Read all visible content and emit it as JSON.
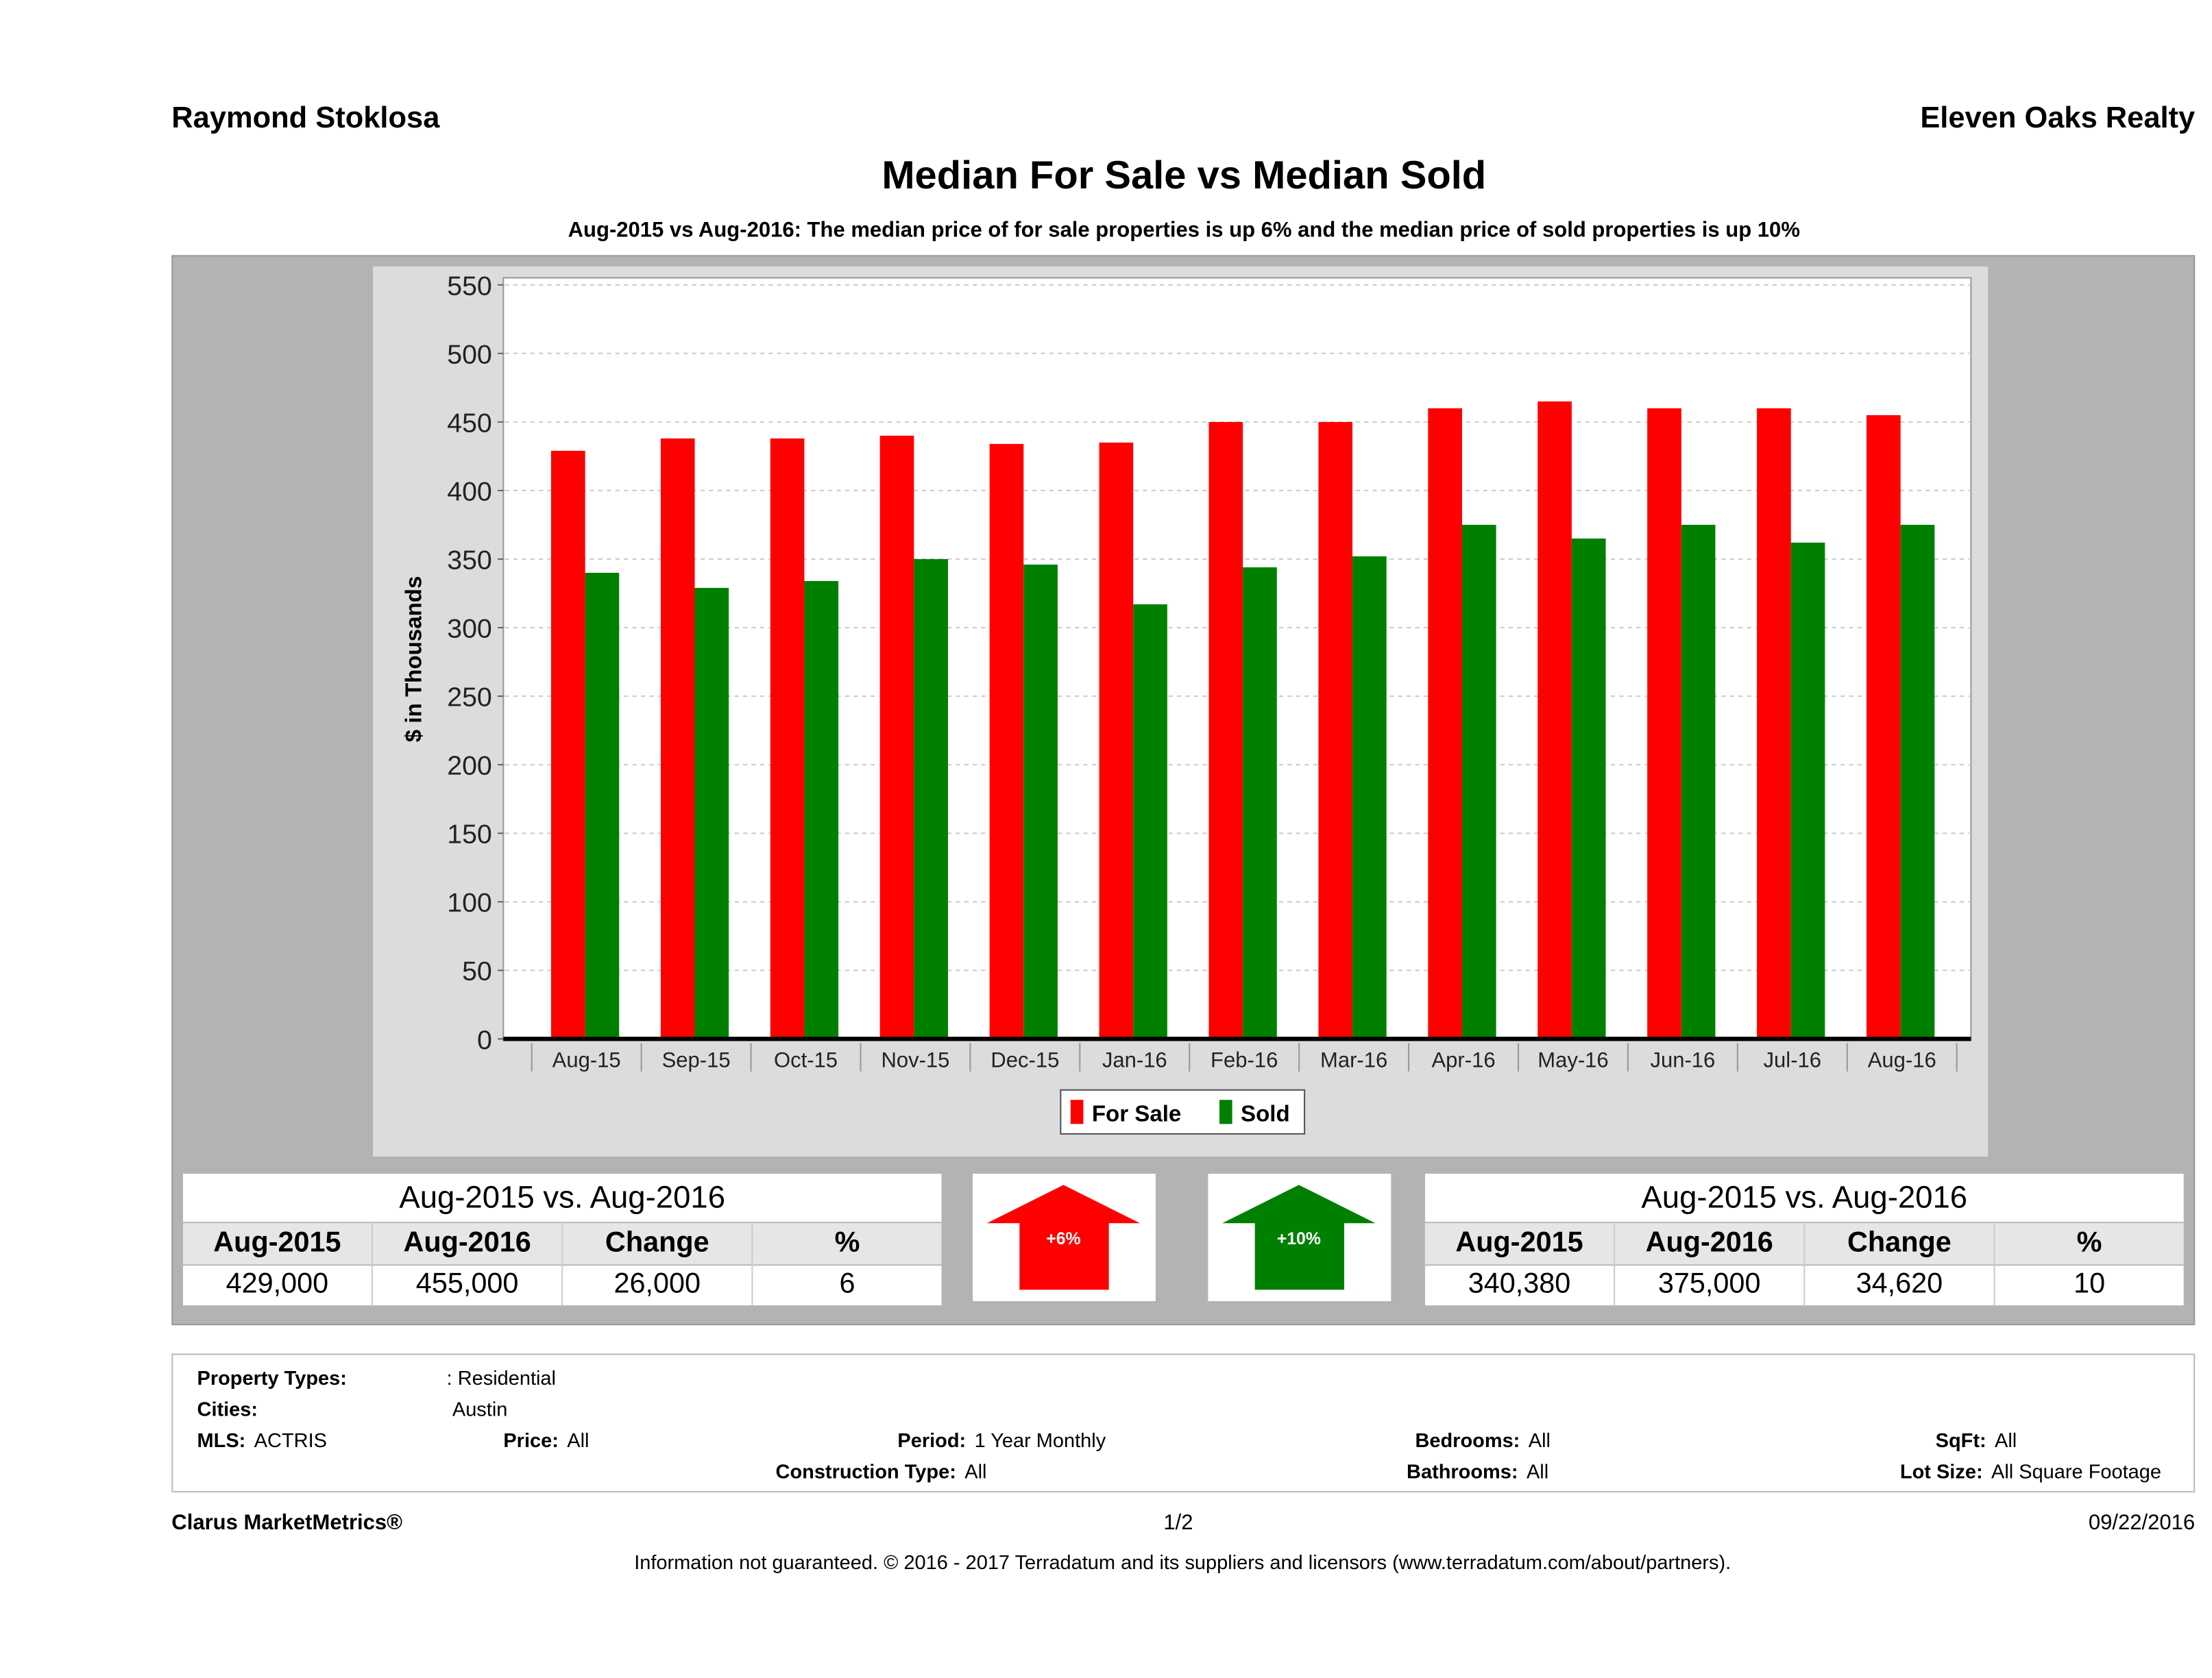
{
  "header": {
    "agent": "Raymond Stoklosa",
    "brokerage": "Eleven Oaks Realty"
  },
  "title": "Median For Sale vs Median Sold",
  "subtitle": "Aug-2015 vs Aug-2016: The median price of for sale properties is up 6% and the median price of sold properties is up 10%",
  "chart_data": {
    "type": "bar",
    "title": "Median For Sale vs Median Sold",
    "ylabel": "$ in Thousands",
    "xlabel": "",
    "ylim": [
      0,
      550
    ],
    "yticks": [
      0,
      50,
      100,
      150,
      200,
      250,
      300,
      350,
      400,
      450,
      500,
      550
    ],
    "grid": true,
    "legend_position": "bottom",
    "categories": [
      "Aug-15",
      "Sep-15",
      "Oct-15",
      "Nov-15",
      "Dec-15",
      "Jan-16",
      "Feb-16",
      "Mar-16",
      "Apr-16",
      "May-16",
      "Jun-16",
      "Jul-16",
      "Aug-16"
    ],
    "series": [
      {
        "name": "For Sale",
        "color": "#ff0000",
        "values": [
          429,
          438,
          438,
          440,
          434,
          435,
          450,
          450,
          460,
          465,
          460,
          460,
          455
        ]
      },
      {
        "name": "Sold",
        "color": "#008000",
        "values": [
          340,
          329,
          334,
          350,
          346,
          317,
          344,
          352,
          375,
          365,
          375,
          362,
          375
        ]
      }
    ]
  },
  "for_sale_table": {
    "caption": "Aug-2015 vs. Aug-2016",
    "headers": [
      "Aug-2015",
      "Aug-2016",
      "Change",
      "%"
    ],
    "values": [
      "429,000",
      "455,000",
      "26,000",
      "6"
    ]
  },
  "sold_table": {
    "caption": "Aug-2015 vs. Aug-2016",
    "headers": [
      "Aug-2015",
      "Aug-2016",
      "Change",
      "%"
    ],
    "values": [
      "340,380",
      "375,000",
      "34,620",
      "10"
    ]
  },
  "arrows": {
    "for_sale": {
      "label": "+6%",
      "color": "#ff0000",
      "direction": "up"
    },
    "sold": {
      "label": "+10%",
      "color": "#008000",
      "direction": "up"
    }
  },
  "info": {
    "property_types_label": "Property Types:",
    "property_types": ": Residential",
    "cities_label": "Cities:",
    "cities": "Austin",
    "mls_label": "MLS:",
    "mls": "ACTRIS",
    "price_label": "Price:",
    "price": "All",
    "period_label": "Period:",
    "period": "1 Year Monthly",
    "construction_label": "Construction Type:",
    "construction": "All",
    "bedrooms_label": "Bedrooms:",
    "bedrooms": "All",
    "bathrooms_label": "Bathrooms:",
    "bathrooms": "All",
    "sqft_label": "SqFt:",
    "sqft": "All",
    "lot_label": "Lot Size:",
    "lot": "All Square Footage"
  },
  "footer": {
    "brand": "Clarus MarketMetrics®",
    "page": "1/2",
    "date": "09/22/2016",
    "disclaimer": "Information not guaranteed. © 2016 - 2017 Terradatum and its suppliers and licensors (www.terradatum.com/about/partners)."
  }
}
